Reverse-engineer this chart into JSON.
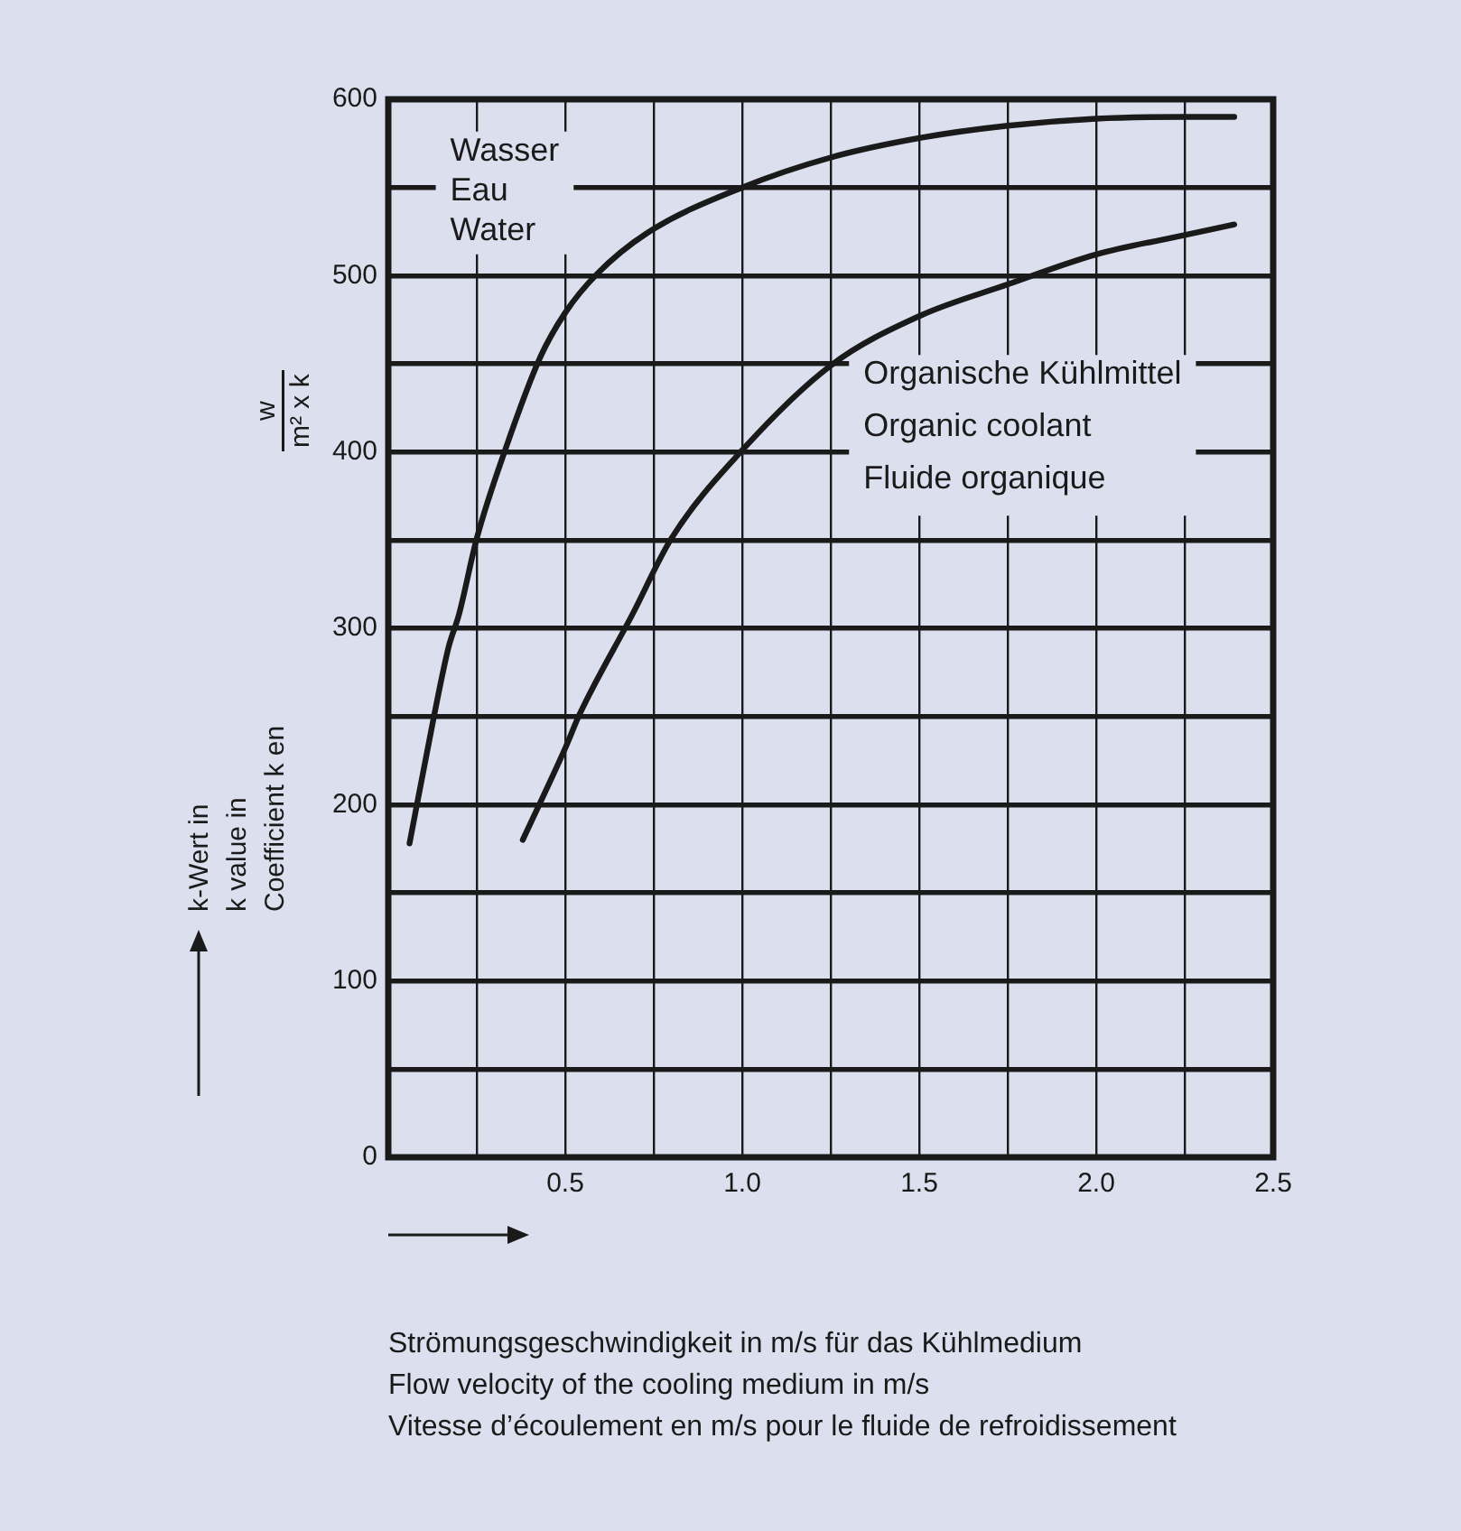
{
  "chart_data": {
    "type": "line",
    "xlabel": "Strömungsgeschwindigkeit in m/s für das Kühlmedium\nFlow velocity of the cooling medium in m/s\nVitesse d’écoulement en m/s pour le fluide de refroidissement",
    "ylabel": "k-Wert in\nk value in\nCoefficient k en",
    "annotations": [
      "w\nm² x k"
    ],
    "xlim": [
      0,
      2.5
    ],
    "xticks": [
      {
        "value": 0,
        "label": null
      },
      {
        "value": 0.25,
        "label": null
      },
      {
        "value": 0.5,
        "label": "0.5"
      },
      {
        "value": 0.75,
        "label": null
      },
      {
        "value": 1,
        "label": "1.0"
      },
      {
        "value": 1.25,
        "label": null
      },
      {
        "value": 1.5,
        "label": "1.5"
      },
      {
        "value": 1.75,
        "label": null
      },
      {
        "value": 2,
        "label": "2.0"
      },
      {
        "value": 2.25,
        "label": null
      },
      {
        "value": 2.5,
        "label": "2.5"
      }
    ],
    "ylim": [
      0,
      600
    ],
    "yticks": [
      0,
      {
        "value": 50,
        "label": null
      },
      100,
      {
        "value": 150,
        "label": null
      },
      200,
      {
        "value": 250,
        "label": null
      },
      300,
      {
        "value": 350,
        "label": null
      },
      400,
      {
        "value": 450,
        "label": null
      },
      500,
      {
        "value": 550,
        "label": null
      },
      600
    ],
    "grid": true,
    "legend": false,
    "marker": "none",
    "line_style": "solid",
    "series": [
      {
        "name": "Wasser\nEau\nWater",
        "color": "#1a1a1a",
        "x": [
          0.06,
          0.13,
          0.17,
          0.2,
          0.25,
          0.33,
          0.43,
          0.5,
          0.59,
          0.73,
          1.0,
          1.25,
          1.5,
          1.75,
          2.0,
          2.25,
          2.39
        ],
        "values": [
          178,
          251,
          289,
          308,
          351,
          401,
          454,
          479,
          501,
          524,
          550,
          567,
          578,
          585,
          589,
          590,
          590
        ]
      },
      {
        "name": "Organische Kühlmittel\nOrganic coolant\nFluide organique",
        "color": "#1a1a1a",
        "x": [
          0.38,
          0.5,
          0.54,
          0.69,
          0.8,
          1.0,
          1.25,
          1.5,
          1.75,
          2.0,
          2.25,
          2.39
        ],
        "values": [
          180,
          232,
          251,
          308,
          351,
          401,
          449,
          477,
          495,
          512,
          523,
          529
        ]
      }
    ]
  }
}
